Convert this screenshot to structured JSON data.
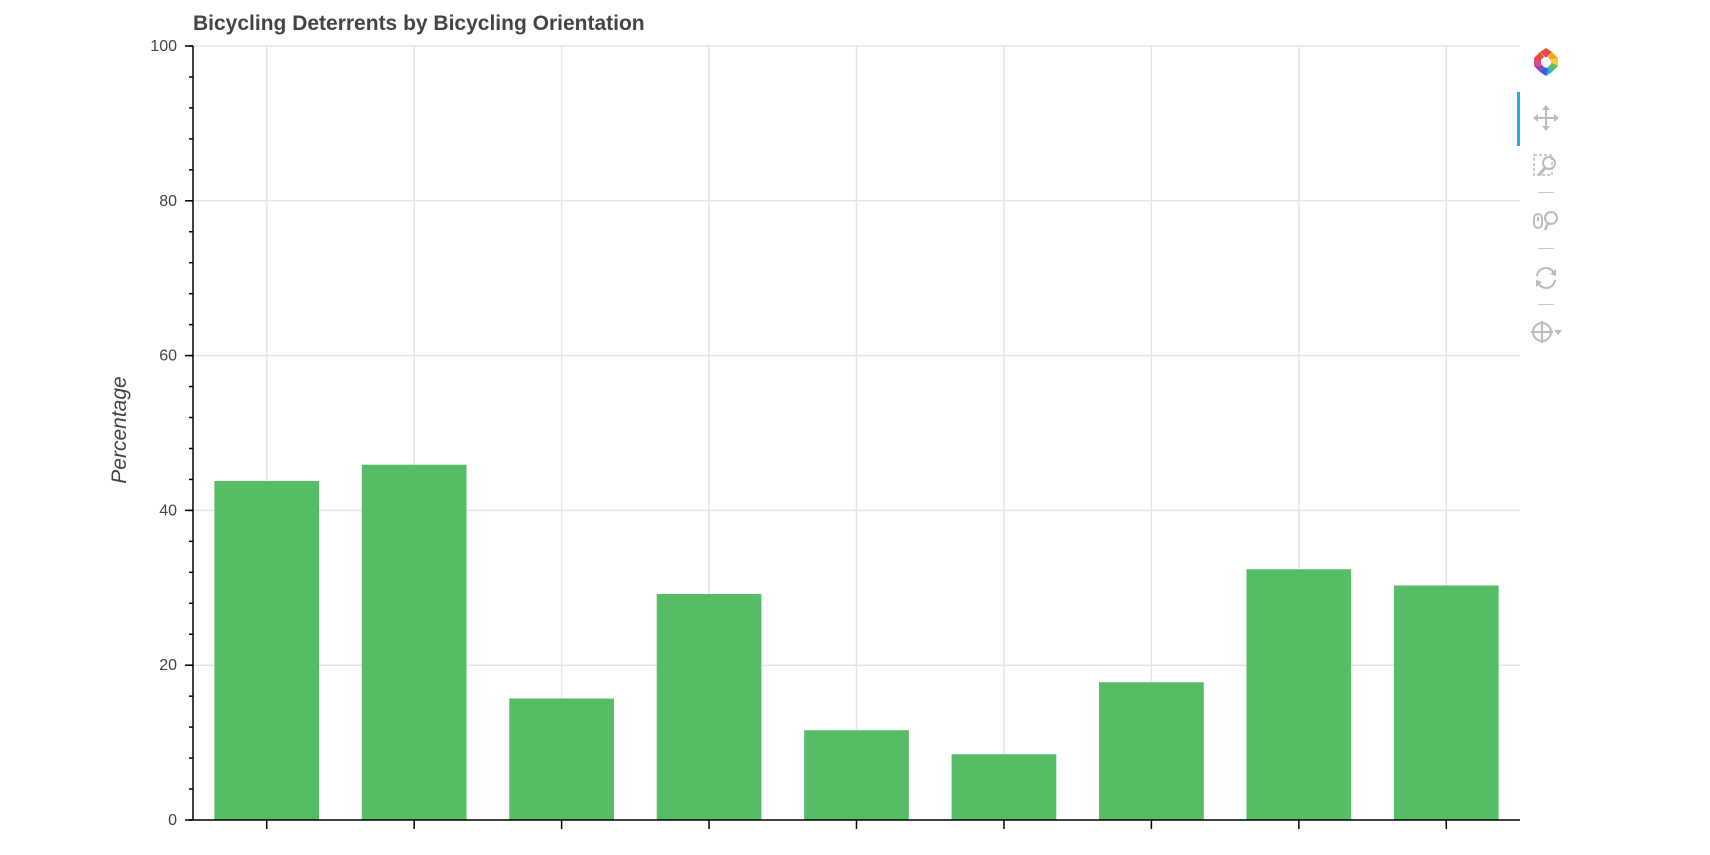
{
  "chart_data": {
    "type": "bar",
    "title": "Bicycling Deterrents by Bicycling Orientation",
    "xlabel": "",
    "ylabel": "Percentage",
    "ylim": [
      0,
      100
    ],
    "yticks": [
      "0",
      "20",
      "40",
      "60",
      "80",
      "100"
    ],
    "categories": [
      "",
      "",
      "",
      "",
      "",
      "",
      "",
      "",
      ""
    ],
    "values": [
      43.8,
      45.9,
      15.7,
      29.2,
      11.6,
      8.5,
      17.8,
      32.4,
      30.3
    ],
    "color": "#56bc66",
    "grid": true,
    "legend": "none"
  },
  "toolbar": {
    "tools": [
      {
        "name": "bokeh-logo-icon",
        "interactable": false
      },
      {
        "name": "pan-tool-icon",
        "interactable": true,
        "active": true
      },
      {
        "name": "box-zoom-tool-icon",
        "interactable": true
      },
      {
        "name": "wheel-zoom-tool-icon",
        "interactable": true
      },
      {
        "name": "reset-tool-icon",
        "interactable": true
      },
      {
        "name": "crosshair-tool-icon",
        "interactable": true
      }
    ],
    "icon_color": "#bbbbbb",
    "active_color": "#26aae1"
  }
}
